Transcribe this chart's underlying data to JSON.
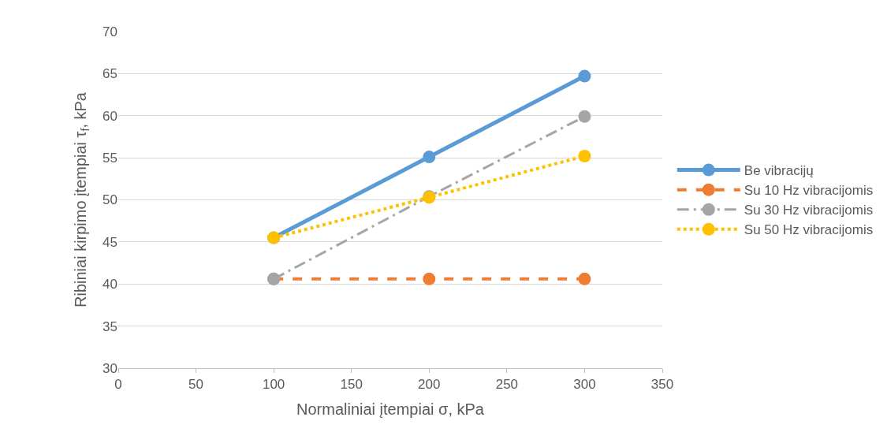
{
  "chart_data": {
    "type": "line",
    "xlabel": "Normaliniai įtempiai σ, kPa",
    "ylabel": "Ribiniai kirpimo įtempiai τ$_{f}$, kPa",
    "x": [
      100,
      200,
      300
    ],
    "series": [
      {
        "name": "Be vibracijų",
        "color": "#5b9bd5",
        "values": [
          45.5,
          55.1,
          64.7
        ],
        "line_style": "solid"
      },
      {
        "name": "Su 10 Hz vibracijomis",
        "color": "#ed7d31",
        "values": [
          40.6,
          40.6,
          40.6
        ],
        "line_style": "dashed"
      },
      {
        "name": "Su 30 Hz vibracijomis",
        "color": "#a5a5a5",
        "values": [
          40.6,
          50.4,
          59.9
        ],
        "line_style": "dashdot"
      },
      {
        "name": "Su 50 Hz vibracijomis",
        "color": "#ffc000",
        "values": [
          45.5,
          50.3,
          55.2
        ],
        "line_style": "dotted"
      }
    ],
    "xlim": [
      0,
      350
    ],
    "xticks": [
      0,
      50,
      100,
      150,
      200,
      250,
      300,
      350
    ],
    "ylim": [
      30,
      70
    ],
    "yticks": [
      30,
      35,
      40,
      45,
      50,
      55,
      60,
      65,
      70
    ],
    "grid": "y",
    "legend": "right",
    "marker": "circle"
  }
}
